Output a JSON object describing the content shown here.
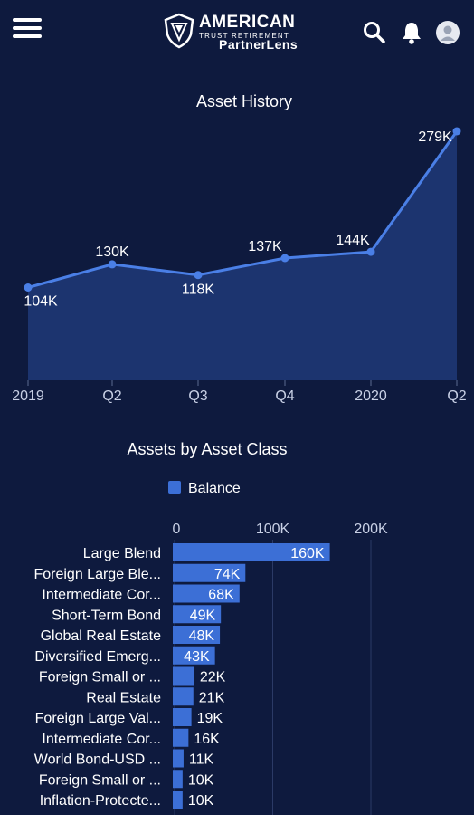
{
  "header": {
    "brand_line1": "AMERICAN",
    "brand_line2": "TRUST RETIREMENT",
    "brand_line3": "PartnerLens"
  },
  "colors": {
    "background": "#0e1a3e",
    "accent": "#3c6fd6",
    "line": "#4a7fe6",
    "area": "#1f3a78"
  },
  "icons": [
    "menu-icon",
    "search-icon",
    "bell-icon",
    "user-avatar-icon"
  ],
  "chart_data": [
    {
      "type": "area",
      "title": "Asset History",
      "categories": [
        "2019",
        "Q2",
        "Q3",
        "Q4",
        "2020",
        "Q2"
      ],
      "values": [
        104,
        130,
        118,
        137,
        144,
        279
      ],
      "value_labels": [
        "104K",
        "130K",
        "118K",
        "137K",
        "144K",
        "279K"
      ],
      "unit": "K",
      "grid": false
    },
    {
      "type": "bar",
      "orientation": "horizontal",
      "title": "Assets by Asset Class",
      "legend": [
        "Balance"
      ],
      "legend_position": "top",
      "xticks": [
        "0",
        "100K",
        "200K"
      ],
      "xtick_values": [
        0,
        100,
        200
      ],
      "categories": [
        "Large Blend",
        "Foreign Large Ble...",
        "Intermediate Cor...",
        "Short-Term Bond",
        "Global Real Estate",
        "Diversified Emerg...",
        "Foreign Small or ...",
        "Real Estate",
        "Foreign Large Val...",
        "Intermediate Cor...",
        "World Bond-USD ...",
        "Foreign Small or ...",
        "Inflation-Protecte..."
      ],
      "values": [
        160,
        74,
        68,
        49,
        48,
        43,
        22,
        21,
        19,
        16,
        11,
        10,
        10
      ],
      "value_labels": [
        "160K",
        "74K",
        "68K",
        "49K",
        "48K",
        "43K",
        "22K",
        "21K",
        "19K",
        "16K",
        "11K",
        "10K",
        "10K"
      ],
      "series": [
        {
          "name": "Balance"
        }
      ],
      "grid": true
    }
  ]
}
